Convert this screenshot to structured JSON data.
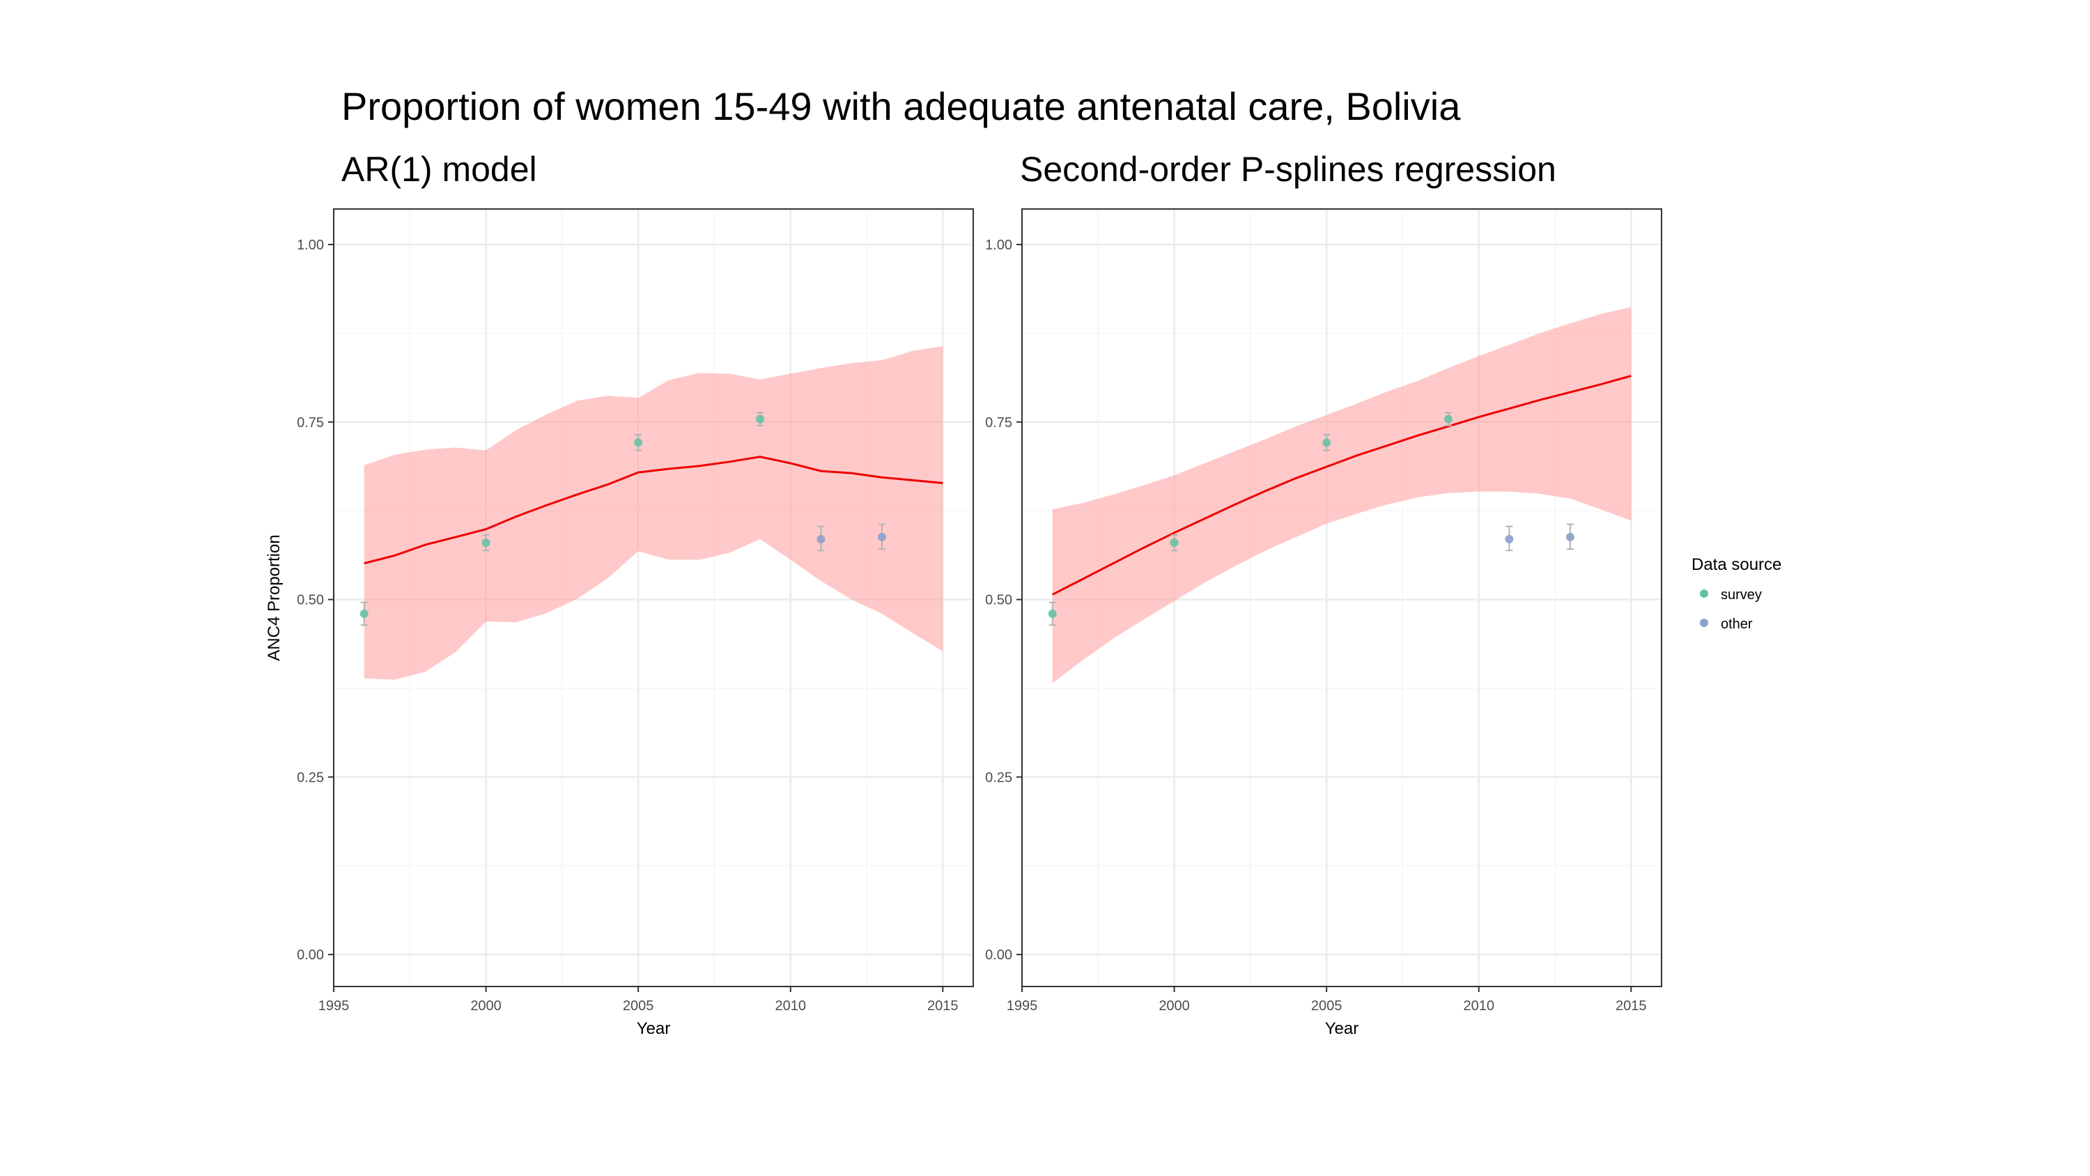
{
  "main_title": "Proportion of women 15-49 with adequate antenatal care, Bolivia",
  "legend": {
    "title": "Data source",
    "items": [
      {
        "label": "survey",
        "color": "#66c2a5"
      },
      {
        "label": "other",
        "color": "#8da0cb"
      }
    ]
  },
  "colors": {
    "line": "#ee0000",
    "band": "#ff9c9c",
    "panel_border": "#333333",
    "grid_major": "#ebebeb",
    "grid_minor": "#f5f5f5",
    "error_bar": "#b3b3b3"
  },
  "chart_data": [
    {
      "type": "line",
      "title": "AR(1) model",
      "xlabel": "Year",
      "ylabel": "ANC4 Proportion",
      "xlim": [
        1995,
        2016
      ],
      "ylim": [
        -0.045,
        1.05
      ],
      "x_ticks": [
        1995,
        2000,
        2005,
        2010,
        2015
      ],
      "y_ticks": [
        0.0,
        0.25,
        0.5,
        0.75,
        1.0
      ],
      "y_tick_labels": [
        "0.00",
        "0.25",
        "0.50",
        "0.75",
        "1.00"
      ],
      "grid": true,
      "legend_position": "right",
      "estimate": {
        "x": [
          1996,
          1997,
          1998,
          1999,
          2000,
          2001,
          2002,
          2003,
          2004,
          2005,
          2006,
          2007,
          2008,
          2009,
          2010,
          2011,
          2012,
          2013,
          2014,
          2015
        ],
        "y": [
          0.551,
          0.562,
          0.577,
          0.588,
          0.599,
          0.617,
          0.633,
          0.648,
          0.662,
          0.679,
          0.684,
          0.688,
          0.694,
          0.701,
          0.692,
          0.681,
          0.678,
          0.672,
          0.668,
          0.664
        ],
        "lower": [
          0.389,
          0.387,
          0.398,
          0.426,
          0.469,
          0.468,
          0.481,
          0.501,
          0.53,
          0.568,
          0.556,
          0.556,
          0.566,
          0.585,
          0.556,
          0.526,
          0.5,
          0.48,
          0.453,
          0.427
        ],
        "upper": [
          0.689,
          0.704,
          0.711,
          0.714,
          0.71,
          0.739,
          0.761,
          0.78,
          0.787,
          0.784,
          0.809,
          0.819,
          0.818,
          0.81,
          0.818,
          0.826,
          0.833,
          0.837,
          0.85,
          0.857
        ]
      },
      "points": [
        {
          "x": 1996,
          "y": 0.48,
          "lo": 0.464,
          "hi": 0.496,
          "source": "survey"
        },
        {
          "x": 2000,
          "y": 0.58,
          "lo": 0.569,
          "hi": 0.591,
          "source": "survey"
        },
        {
          "x": 2005,
          "y": 0.721,
          "lo": 0.71,
          "hi": 0.732,
          "source": "survey"
        },
        {
          "x": 2009,
          "y": 0.754,
          "lo": 0.745,
          "hi": 0.763,
          "source": "survey"
        },
        {
          "x": 2011,
          "y": 0.585,
          "lo": 0.569,
          "hi": 0.603,
          "source": "other"
        },
        {
          "x": 2013,
          "y": 0.588,
          "lo": 0.571,
          "hi": 0.606,
          "source": "other"
        }
      ]
    },
    {
      "type": "line",
      "title": "Second-order P-splines regression",
      "xlabel": "Year",
      "ylabel": "",
      "xlim": [
        1995,
        2016
      ],
      "ylim": [
        -0.045,
        1.05
      ],
      "x_ticks": [
        1995,
        2000,
        2005,
        2010,
        2015
      ],
      "y_ticks": [
        0.0,
        0.25,
        0.5,
        0.75,
        1.0
      ],
      "y_tick_labels": [
        "0.00",
        "0.25",
        "0.50",
        "0.75",
        "1.00"
      ],
      "grid": true,
      "legend_position": "right",
      "estimate": {
        "x": [
          1996,
          1997,
          1998,
          1999,
          2000,
          2001,
          2002,
          2003,
          2004,
          2005,
          2006,
          2007,
          2008,
          2009,
          2010,
          2011,
          2012,
          2013,
          2014,
          2015
        ],
        "y": [
          0.507,
          0.529,
          0.551,
          0.573,
          0.594,
          0.614,
          0.634,
          0.653,
          0.671,
          0.687,
          0.703,
          0.717,
          0.731,
          0.744,
          0.757,
          0.769,
          0.781,
          0.792,
          0.803,
          0.815
        ],
        "lower": [
          0.382,
          0.415,
          0.445,
          0.472,
          0.498,
          0.524,
          0.547,
          0.569,
          0.588,
          0.607,
          0.621,
          0.634,
          0.644,
          0.65,
          0.652,
          0.652,
          0.649,
          0.642,
          0.627,
          0.611
        ],
        "upper": [
          0.627,
          0.636,
          0.648,
          0.661,
          0.675,
          0.692,
          0.709,
          0.726,
          0.744,
          0.76,
          0.776,
          0.793,
          0.808,
          0.826,
          0.843,
          0.859,
          0.875,
          0.889,
          0.902,
          0.912
        ]
      },
      "points": [
        {
          "x": 1996,
          "y": 0.48,
          "lo": 0.464,
          "hi": 0.496,
          "source": "survey"
        },
        {
          "x": 2000,
          "y": 0.58,
          "lo": 0.569,
          "hi": 0.591,
          "source": "survey"
        },
        {
          "x": 2005,
          "y": 0.721,
          "lo": 0.71,
          "hi": 0.732,
          "source": "survey"
        },
        {
          "x": 2009,
          "y": 0.754,
          "lo": 0.745,
          "hi": 0.763,
          "source": "survey"
        },
        {
          "x": 2011,
          "y": 0.585,
          "lo": 0.569,
          "hi": 0.603,
          "source": "other"
        },
        {
          "x": 2013,
          "y": 0.588,
          "lo": 0.571,
          "hi": 0.606,
          "source": "other"
        }
      ]
    }
  ]
}
